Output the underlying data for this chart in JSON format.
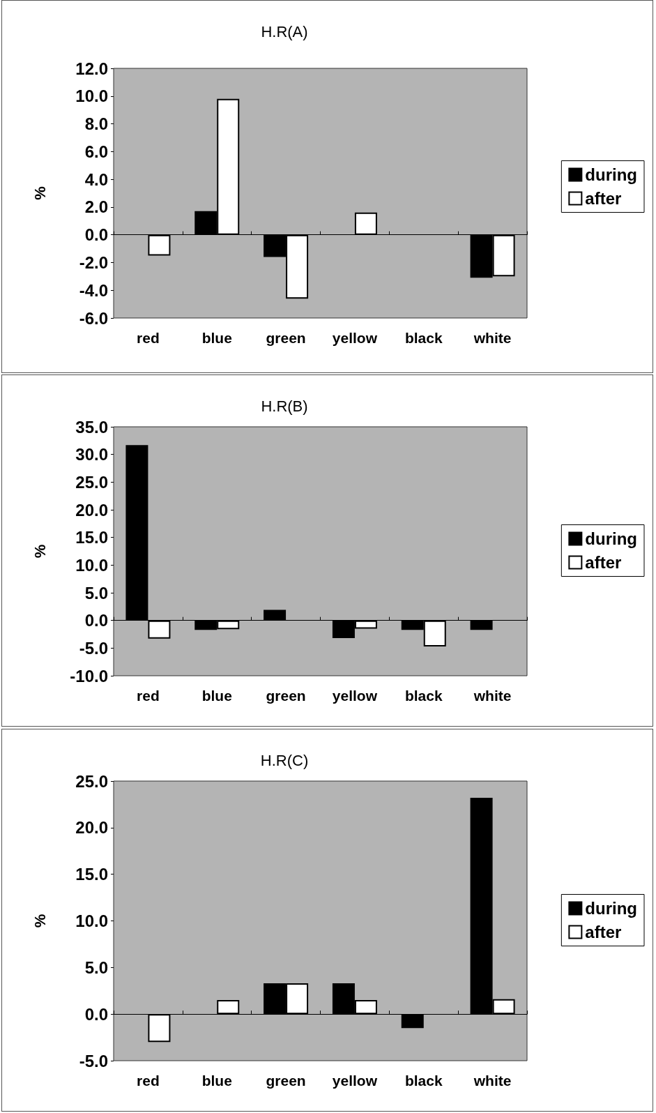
{
  "chart_data": [
    {
      "type": "bar",
      "title": "H.R(A)",
      "ylabel": "%",
      "categories": [
        "red",
        "blue",
        "green",
        "yellow",
        "black",
        "white"
      ],
      "series": [
        {
          "name": "during",
          "color": "#000000",
          "values": [
            null,
            1.7,
            -1.6,
            null,
            null,
            -3.1
          ]
        },
        {
          "name": "after",
          "color": "#ffffff",
          "values": [
            -1.5,
            9.8,
            -4.6,
            1.6,
            null,
            -3.0
          ]
        }
      ],
      "ylim": [
        -6,
        12
      ],
      "yticks": [
        {
          "value": -6,
          "label": "-6.0"
        },
        {
          "value": -4,
          "label": "-4.0"
        },
        {
          "value": -2,
          "label": "-2.0"
        },
        {
          "value": 0,
          "label": "0.0"
        },
        {
          "value": 2,
          "label": "2.0"
        },
        {
          "value": 4,
          "label": "4.0"
        },
        {
          "value": 6,
          "label": "6.0"
        },
        {
          "value": 8,
          "label": "8.0"
        },
        {
          "value": 10,
          "label": "10.0"
        },
        {
          "value": 12,
          "label": "12.0"
        }
      ],
      "legend": "right"
    },
    {
      "type": "bar",
      "title": "H.R(B)",
      "ylabel": "%",
      "categories": [
        "red",
        "blue",
        "green",
        "yellow",
        "black",
        "white"
      ],
      "series": [
        {
          "name": "during",
          "color": "#000000",
          "values": [
            31.7,
            -1.7,
            1.9,
            -3.2,
            -1.7,
            -1.7
          ]
        },
        {
          "name": "after",
          "color": "#ffffff",
          "values": [
            -3.3,
            -1.6,
            null,
            -1.5,
            -4.7,
            null
          ]
        }
      ],
      "ylim": [
        -10,
        35
      ],
      "yticks": [
        {
          "value": -10,
          "label": "-10.0"
        },
        {
          "value": -5,
          "label": "-5.0"
        },
        {
          "value": 0,
          "label": "0.0"
        },
        {
          "value": 5,
          "label": "5.0"
        },
        {
          "value": 10,
          "label": "10.0"
        },
        {
          "value": 15,
          "label": "15.0"
        },
        {
          "value": 20,
          "label": "20.0"
        },
        {
          "value": 25,
          "label": "25.0"
        },
        {
          "value": 30,
          "label": "30.0"
        },
        {
          "value": 35,
          "label": "35.0"
        }
      ],
      "legend": "right"
    },
    {
      "type": "bar",
      "title": "H.R(C)",
      "ylabel": "%",
      "categories": [
        "red",
        "blue",
        "green",
        "yellow",
        "black",
        "white"
      ],
      "series": [
        {
          "name": "during",
          "color": "#000000",
          "values": [
            null,
            null,
            3.3,
            3.3,
            -1.5,
            23.2
          ]
        },
        {
          "name": "after",
          "color": "#ffffff",
          "values": [
            -3.0,
            1.5,
            3.3,
            1.5,
            null,
            1.6
          ]
        }
      ],
      "ylim": [
        -5,
        25
      ],
      "yticks": [
        {
          "value": -5,
          "label": "-5.0"
        },
        {
          "value": 0,
          "label": "0.0"
        },
        {
          "value": 5,
          "label": "5.0"
        },
        {
          "value": 10,
          "label": "10.0"
        },
        {
          "value": 15,
          "label": "15.0"
        },
        {
          "value": 20,
          "label": "20.0"
        },
        {
          "value": 25,
          "label": "25.0"
        }
      ],
      "legend": "right"
    }
  ]
}
